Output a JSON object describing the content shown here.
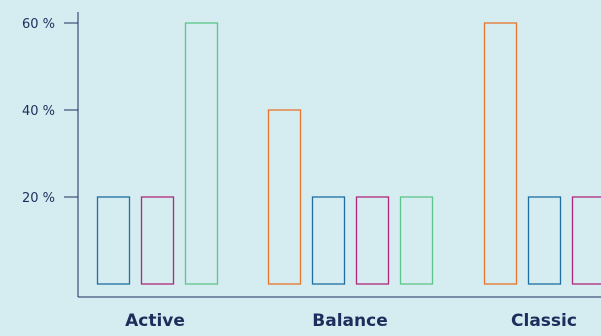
{
  "chart_data": {
    "type": "bar",
    "categories": [
      "Active",
      "Balance",
      "Classic"
    ],
    "series": [
      {
        "color": "#e8762d",
        "values": [
          0,
          40,
          60
        ]
      },
      {
        "color": "#1f6fa3",
        "values": [
          20,
          20,
          20
        ]
      },
      {
        "color": "#b02a7c",
        "values": [
          20,
          20,
          20
        ]
      },
      {
        "color": "#5cc68a",
        "values": [
          60,
          20,
          0
        ]
      }
    ],
    "yticks": [
      {
        "value": 20,
        "label": "20 %"
      },
      {
        "value": 40,
        "label": "40 %"
      },
      {
        "value": 60,
        "label": "60 %"
      }
    ],
    "ylim": [
      0,
      60
    ],
    "grid": false,
    "title": "",
    "xlabel": "",
    "ylabel": "",
    "colors": {
      "background": "#d5ecf0",
      "axis": "#1c2f5c",
      "text": "#1c2f5c"
    }
  }
}
